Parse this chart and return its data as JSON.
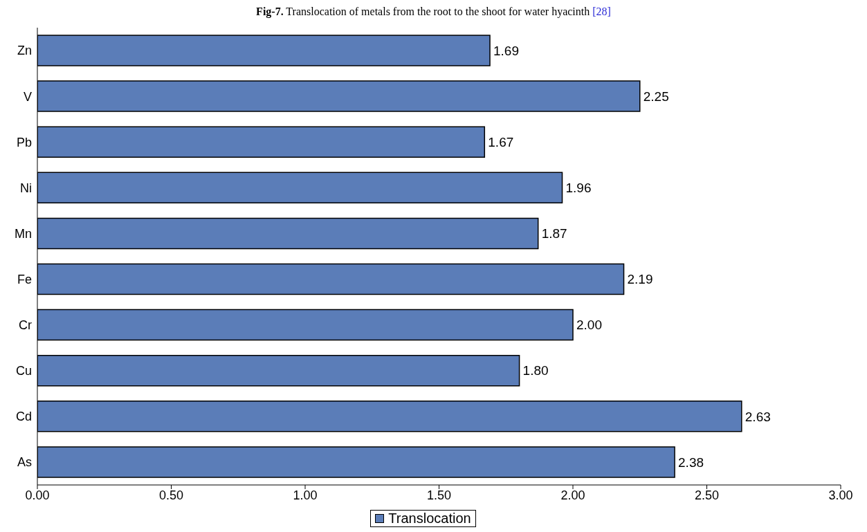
{
  "chart_data": {
    "type": "bar",
    "orientation": "horizontal",
    "title": "Fig-7. Translocation of metals from the root to the shoot for water hyacinth [28]",
    "categories": [
      "Zn",
      "V",
      "Pb",
      "Ni",
      "Mn",
      "Fe",
      "Cr",
      "Cu",
      "Cd",
      "As"
    ],
    "series": [
      {
        "name": "Translocation",
        "color": "#5b7db8",
        "values": [
          1.69,
          2.25,
          1.67,
          1.96,
          1.87,
          2.19,
          2.0,
          1.8,
          2.63,
          2.38
        ],
        "value_labels": [
          "1.69",
          "2.25",
          "1.67",
          "1.96",
          "1.87",
          "2.19",
          "2.00",
          "1.80",
          "2.63",
          "2.38"
        ]
      }
    ],
    "xlim": [
      0,
      3
    ],
    "xticks": [
      {
        "value": 0,
        "label": "0.00"
      },
      {
        "value": 0.5,
        "label": "0.50"
      },
      {
        "value": 1,
        "label": "1.00"
      },
      {
        "value": 1.5,
        "label": "1.50"
      },
      {
        "value": 2,
        "label": "2.00"
      },
      {
        "value": 2.5,
        "label": "2.50"
      },
      {
        "value": 3,
        "label": "3.00"
      }
    ],
    "grid": false,
    "legend": "bottom"
  }
}
